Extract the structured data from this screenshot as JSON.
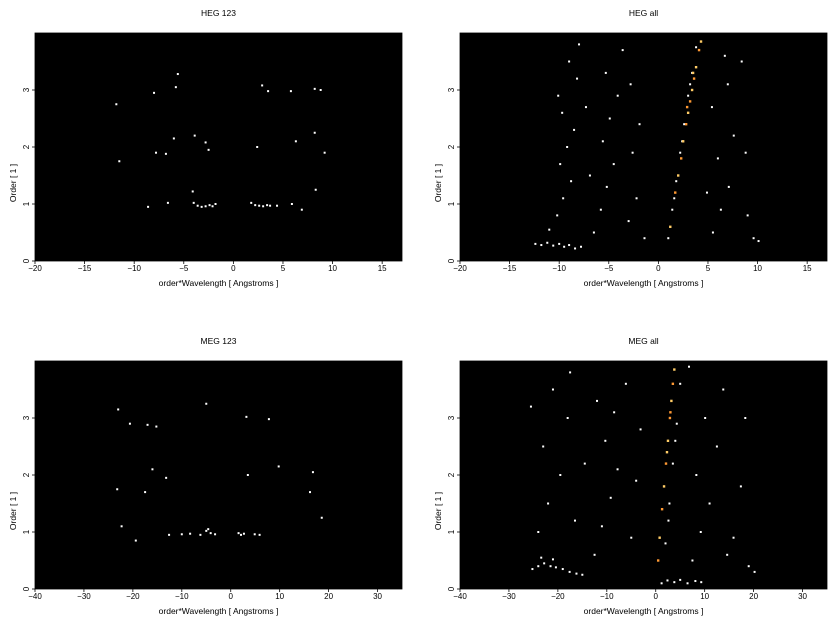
{
  "chart_data": [
    {
      "type": "scatter",
      "title": "HEG 123",
      "xlabel": "order*Wavelength [ Angstroms ]",
      "ylabel": "Order [ 1 ]",
      "xlim": [
        -20,
        17
      ],
      "ylim": [
        0,
        4
      ],
      "xticks": [
        "−20",
        "−15",
        "−10",
        "−5",
        "0",
        "5",
        "10",
        "15"
      ],
      "yticks": [
        "0",
        "1",
        "2",
        "3"
      ],
      "background": "#000000",
      "mark_colors": [
        "#ffffff"
      ],
      "points": [
        [
          -11.8,
          2.75
        ],
        [
          -5.6,
          3.28
        ],
        [
          -5.8,
          3.05
        ],
        [
          -8.0,
          2.95
        ],
        [
          2.9,
          3.08
        ],
        [
          3.5,
          2.98
        ],
        [
          5.8,
          2.98
        ],
        [
          8.2,
          3.02
        ],
        [
          8.8,
          3.0
        ],
        [
          -11.5,
          1.75
        ],
        [
          -7.8,
          1.9
        ],
        [
          -6.8,
          1.88
        ],
        [
          -6.0,
          2.15
        ],
        [
          -3.9,
          2.2
        ],
        [
          -2.8,
          2.08
        ],
        [
          -2.5,
          1.95
        ],
        [
          2.4,
          2.0
        ],
        [
          8.2,
          2.25
        ],
        [
          9.2,
          1.9
        ],
        [
          6.3,
          2.1
        ],
        [
          -8.6,
          0.95
        ],
        [
          -4.1,
          1.22
        ],
        [
          -4.0,
          1.02
        ],
        [
          -3.6,
          0.97
        ],
        [
          -3.2,
          0.95
        ],
        [
          -2.8,
          0.96
        ],
        [
          -2.4,
          0.98
        ],
        [
          -2.1,
          0.96
        ],
        [
          -1.8,
          1.0
        ],
        [
          1.8,
          1.02
        ],
        [
          2.2,
          0.98
        ],
        [
          2.6,
          0.97
        ],
        [
          3.0,
          0.96
        ],
        [
          3.4,
          0.98
        ],
        [
          3.7,
          0.97
        ],
        [
          4.4,
          0.97
        ],
        [
          5.9,
          1.0
        ],
        [
          6.9,
          0.9
        ],
        [
          8.3,
          1.25
        ],
        [
          -6.6,
          1.02
        ]
      ]
    },
    {
      "type": "scatter",
      "title": "HEG all",
      "xlabel": "order*Wavelength [ Angstroms ]",
      "ylabel": "Order [ 1 ]",
      "xlim": [
        -20,
        17
      ],
      "ylim": [
        0,
        4
      ],
      "xticks": [
        "−20",
        "−15",
        "−10",
        "−5",
        "0",
        "5",
        "10",
        "15"
      ],
      "yticks": [
        "0",
        "1",
        "2",
        "3"
      ],
      "background": "#000000",
      "mark_colors": [
        "#ffffff",
        "#ffcc66",
        "#ff9933"
      ],
      "points": [
        [
          -12.4,
          0.3
        ],
        [
          -11.8,
          0.28
        ],
        [
          -11.2,
          0.32
        ],
        [
          -10.6,
          0.27
        ],
        [
          -10.0,
          0.3
        ],
        [
          -9.5,
          0.25
        ],
        [
          -9.0,
          0.28
        ],
        [
          -8.4,
          0.22
        ],
        [
          -7.8,
          0.25
        ],
        [
          -11.0,
          0.55
        ],
        [
          -10.2,
          0.8
        ],
        [
          -9.6,
          1.1
        ],
        [
          -8.8,
          1.4
        ],
        [
          -9.9,
          1.7
        ],
        [
          -9.2,
          2.0
        ],
        [
          -8.5,
          2.3
        ],
        [
          -9.7,
          2.6
        ],
        [
          -10.1,
          2.9
        ],
        [
          -8.2,
          3.2
        ],
        [
          -9.0,
          3.5
        ],
        [
          -8.0,
          3.8
        ],
        [
          -6.5,
          0.5
        ],
        [
          -5.8,
          0.9
        ],
        [
          -5.2,
          1.3
        ],
        [
          -4.5,
          1.7
        ],
        [
          -5.6,
          2.1
        ],
        [
          -4.9,
          2.5
        ],
        [
          -4.1,
          2.9
        ],
        [
          -5.3,
          3.3
        ],
        [
          -3.6,
          3.7
        ],
        [
          -6.9,
          1.5
        ],
        [
          -7.3,
          2.7
        ],
        [
          -3.0,
          0.7
        ],
        [
          -2.2,
          1.1
        ],
        [
          -2.6,
          1.9
        ],
        [
          -1.9,
          2.4
        ],
        [
          -2.8,
          3.1
        ],
        [
          -1.4,
          0.4
        ],
        [
          1.0,
          0.4
        ],
        [
          1.4,
          0.9
        ],
        [
          1.8,
          1.4
        ],
        [
          2.2,
          1.9
        ],
        [
          2.6,
          2.4
        ],
        [
          3.0,
          2.9
        ],
        [
          3.4,
          3.3
        ],
        [
          3.8,
          3.75
        ],
        [
          1.6,
          1.1
        ],
        [
          2.4,
          2.1
        ],
        [
          3.2,
          3.1
        ],
        [
          5.5,
          0.5
        ],
        [
          6.3,
          0.9
        ],
        [
          7.1,
          1.3
        ],
        [
          6.0,
          1.8
        ],
        [
          7.6,
          2.2
        ],
        [
          5.4,
          2.7
        ],
        [
          7.0,
          3.1
        ],
        [
          8.4,
          3.5
        ],
        [
          9.0,
          0.8
        ],
        [
          9.6,
          0.4
        ],
        [
          10.1,
          0.35
        ],
        [
          8.8,
          1.9
        ],
        [
          6.7,
          3.6
        ],
        [
          4.9,
          1.2
        ]
      ],
      "hot_points": [
        [
          1.2,
          0.6
        ],
        [
          1.7,
          1.2
        ],
        [
          2.0,
          1.5
        ],
        [
          2.3,
          1.8
        ],
        [
          2.5,
          2.1
        ],
        [
          2.8,
          2.4
        ],
        [
          3.0,
          2.6
        ],
        [
          3.2,
          2.8
        ],
        [
          3.4,
          3.0
        ],
        [
          3.6,
          3.2
        ],
        [
          3.8,
          3.4
        ],
        [
          4.1,
          3.7
        ],
        [
          4.3,
          3.85
        ],
        [
          2.9,
          2.7
        ],
        [
          3.5,
          3.3
        ]
      ]
    },
    {
      "type": "scatter",
      "title": "MEG 123",
      "xlabel": "order*Wavelength [ Angstroms ]",
      "ylabel": "Order [ 1 ]",
      "xlim": [
        -40,
        35
      ],
      "ylim": [
        0,
        4
      ],
      "xticks": [
        "−40",
        "−30",
        "−20",
        "−10",
        "0",
        "10",
        "20",
        "30"
      ],
      "yticks": [
        "0",
        "1",
        "2",
        "3"
      ],
      "background": "#000000",
      "mark_colors": [
        "#ffffff"
      ],
      "points": [
        [
          -23.0,
          3.15
        ],
        [
          -20.6,
          2.9
        ],
        [
          -17.0,
          2.88
        ],
        [
          -15.2,
          2.85
        ],
        [
          -5.0,
          3.25
        ],
        [
          3.2,
          3.02
        ],
        [
          7.8,
          2.98
        ],
        [
          -23.2,
          1.75
        ],
        [
          -17.5,
          1.7
        ],
        [
          -16.0,
          2.1
        ],
        [
          -13.2,
          1.95
        ],
        [
          3.5,
          2.0
        ],
        [
          9.8,
          2.15
        ],
        [
          16.8,
          2.05
        ],
        [
          16.2,
          1.7
        ],
        [
          -22.3,
          1.1
        ],
        [
          -19.4,
          0.85
        ],
        [
          -12.6,
          0.95
        ],
        [
          -10.0,
          0.96
        ],
        [
          -8.3,
          0.97
        ],
        [
          -6.2,
          0.95
        ],
        [
          -5.0,
          1.02
        ],
        [
          -4.1,
          0.98
        ],
        [
          -3.2,
          0.96
        ],
        [
          1.6,
          0.98
        ],
        [
          2.1,
          0.95
        ],
        [
          2.7,
          0.97
        ],
        [
          4.9,
          0.96
        ],
        [
          5.9,
          0.95
        ],
        [
          18.6,
          1.25
        ],
        [
          -4.6,
          1.05
        ]
      ]
    },
    {
      "type": "scatter",
      "title": "MEG all",
      "xlabel": "order*Wavelength [ Angstroms ]",
      "ylabel": "Order [ 1 ]",
      "xlim": [
        -40,
        35
      ],
      "ylim": [
        0,
        4
      ],
      "xticks": [
        "−40",
        "−30",
        "−20",
        "−10",
        "0",
        "10",
        "20",
        "30"
      ],
      "yticks": [
        "0",
        "1",
        "2",
        "3"
      ],
      "background": "#000000",
      "mark_colors": [
        "#ffffff",
        "#ffcc66",
        "#ff9933"
      ],
      "points": [
        [
          -25.2,
          0.35
        ],
        [
          -24.0,
          0.4
        ],
        [
          -22.8,
          0.45
        ],
        [
          -21.5,
          0.4
        ],
        [
          -20.4,
          0.38
        ],
        [
          -19.0,
          0.35
        ],
        [
          -17.6,
          0.3
        ],
        [
          -16.2,
          0.27
        ],
        [
          -15.0,
          0.25
        ],
        [
          -23.4,
          0.55
        ],
        [
          -21.0,
          0.52
        ],
        [
          -24.0,
          1.0
        ],
        [
          -22.0,
          1.5
        ],
        [
          -19.5,
          2.0
        ],
        [
          -23.0,
          2.5
        ],
        [
          -18.0,
          3.0
        ],
        [
          -21.0,
          3.5
        ],
        [
          -16.5,
          1.2
        ],
        [
          -14.5,
          2.2
        ],
        [
          -17.5,
          3.8
        ],
        [
          -25.5,
          3.2
        ],
        [
          -12.5,
          0.6
        ],
        [
          -11.0,
          1.1
        ],
        [
          -9.2,
          1.6
        ],
        [
          -7.8,
          2.1
        ],
        [
          -10.3,
          2.6
        ],
        [
          -8.5,
          3.1
        ],
        [
          -6.1,
          3.6
        ],
        [
          -12.0,
          3.3
        ],
        [
          -5.0,
          0.9
        ],
        [
          -4.0,
          1.9
        ],
        [
          -3.1,
          2.8
        ],
        [
          1.2,
          0.1
        ],
        [
          2.4,
          0.15
        ],
        [
          3.8,
          0.12
        ],
        [
          5.0,
          0.16
        ],
        [
          6.5,
          0.1
        ],
        [
          8.1,
          0.14
        ],
        [
          9.3,
          0.12
        ],
        [
          2.0,
          0.8
        ],
        [
          2.8,
          1.5
        ],
        [
          3.5,
          2.2
        ],
        [
          4.3,
          2.9
        ],
        [
          5.0,
          3.6
        ],
        [
          2.6,
          1.2
        ],
        [
          4.0,
          2.6
        ],
        [
          7.5,
          0.5
        ],
        [
          9.2,
          1.0
        ],
        [
          11.0,
          1.5
        ],
        [
          8.3,
          2.0
        ],
        [
          12.5,
          2.5
        ],
        [
          10.1,
          3.0
        ],
        [
          13.8,
          3.5
        ],
        [
          15.9,
          0.9
        ],
        [
          17.4,
          1.8
        ],
        [
          19.0,
          0.4
        ],
        [
          20.2,
          0.3
        ],
        [
          18.3,
          3.0
        ],
        [
          14.6,
          0.6
        ],
        [
          6.8,
          3.9
        ]
      ],
      "hot_points": [
        [
          0.8,
          0.9
        ],
        [
          1.3,
          1.4
        ],
        [
          1.7,
          1.8
        ],
        [
          2.1,
          2.2
        ],
        [
          2.5,
          2.6
        ],
        [
          2.9,
          3.0
        ],
        [
          3.2,
          3.3
        ],
        [
          3.5,
          3.6
        ],
        [
          3.8,
          3.85
        ],
        [
          0.5,
          0.5
        ],
        [
          2.3,
          2.4
        ],
        [
          3.0,
          3.1
        ]
      ]
    }
  ]
}
